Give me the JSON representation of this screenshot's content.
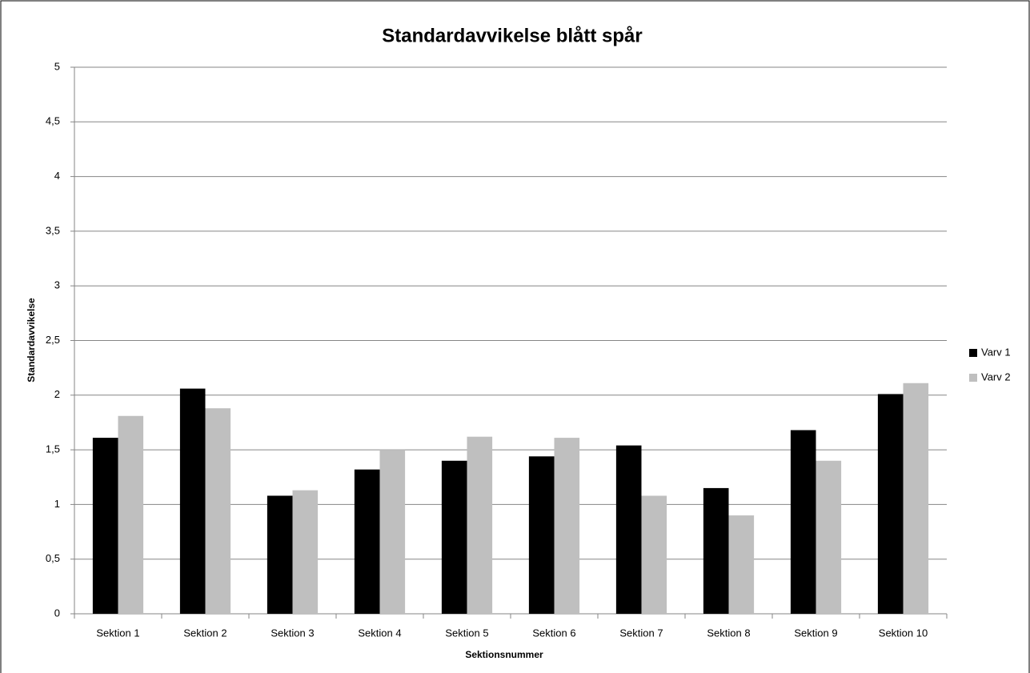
{
  "chart_data": {
    "type": "bar",
    "title": "Standardavvikelse blått spår",
    "x_label": "Sektionsnummer",
    "y_label": "Standardavvikelse",
    "categories": [
      "Sektion 1",
      "Sektion 2",
      "Sektion 3",
      "Sektion 4",
      "Sektion 5",
      "Sektion 6",
      "Sektion 7",
      "Sektion 8",
      "Sektion 9",
      "Sektion 10"
    ],
    "series": [
      {
        "name": "Varv 1",
        "color": "#000000",
        "values": [
          1.61,
          2.06,
          1.08,
          1.32,
          1.4,
          1.44,
          1.54,
          1.15,
          1.68,
          2.01
        ]
      },
      {
        "name": "Varv 2",
        "color": "#bfbfbf",
        "values": [
          1.81,
          1.88,
          1.13,
          1.5,
          1.62,
          1.61,
          1.08,
          0.9,
          1.4,
          2.11
        ]
      }
    ],
    "ylim": [
      0,
      5
    ],
    "yticks": [
      0,
      {
        "value": 0.5,
        "label": "0,5"
      },
      1,
      {
        "value": 1.5,
        "label": "1,5"
      },
      2,
      {
        "value": 2.5,
        "label": "2,5"
      },
      3,
      {
        "value": 3.5,
        "label": "3,5"
      },
      4,
      {
        "value": 4.5,
        "label": "4,5"
      },
      5
    ],
    "grid": true,
    "legend": "right"
  }
}
